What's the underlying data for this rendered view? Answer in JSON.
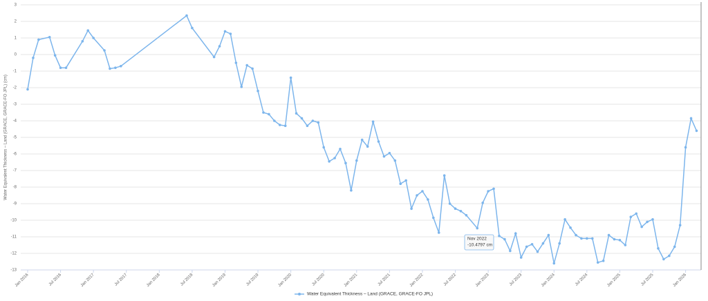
{
  "chart_data": {
    "type": "line",
    "y_label": "Water Equivalent Thickness – Land (GRACE, GRACE-FO JPL) (cm)",
    "x": [
      "2016-01",
      "2016-02",
      "2016-03",
      "2016-05",
      "2016-06",
      "2016-07",
      "2016-08",
      "2016-11",
      "2016-12",
      "2017-01",
      "2017-03",
      "2017-04",
      "2017-05",
      "2017-06",
      "2018-06",
      "2018-07",
      "2018-11",
      "2018-12",
      "2019-01",
      "2019-02",
      "2019-03",
      "2019-04",
      "2019-05",
      "2019-06",
      "2019-07",
      "2019-08",
      "2019-09",
      "2019-10",
      "2019-11",
      "2019-12",
      "2020-01",
      "2020-02",
      "2020-03",
      "2020-04",
      "2020-05",
      "2020-06",
      "2020-07",
      "2020-08",
      "2020-09",
      "2020-10",
      "2020-11",
      "2020-12",
      "2021-01",
      "2021-02",
      "2021-03",
      "2021-04",
      "2021-05",
      "2021-06",
      "2021-07",
      "2021-08",
      "2021-09",
      "2021-10",
      "2021-11",
      "2021-12",
      "2022-01",
      "2022-02",
      "2022-03",
      "2022-04",
      "2022-05",
      "2022-06",
      "2022-07",
      "2022-08",
      "2022-09",
      "2022-11",
      "2022-12",
      "2023-01",
      "2023-02",
      "2023-03",
      "2023-04",
      "2023-05",
      "2023-06",
      "2023-07",
      "2023-08",
      "2023-09",
      "2023-10",
      "2023-11",
      "2023-12",
      "2024-01",
      "2024-02",
      "2024-03",
      "2024-04",
      "2024-05",
      "2024-06",
      "2024-07",
      "2024-08",
      "2024-09",
      "2024-10",
      "2024-11",
      "2024-12",
      "2025-01",
      "2025-02",
      "2025-03",
      "2025-04",
      "2025-05",
      "2025-06",
      "2025-07",
      "2025-08",
      "2025-09",
      "2025-10",
      "2025-11",
      "2025-12",
      "2026-01",
      "2026-02",
      "2026-03"
    ],
    "series": [
      {
        "name": "Water Equivalent Thickness – Land (GRACE, GRACE-FO JPL)",
        "color": "#7cb5ec",
        "values": [
          -2.1,
          -0.2,
          0.9,
          1.05,
          -0.05,
          -0.8,
          -0.8,
          0.8,
          1.45,
          1.0,
          0.25,
          -0.85,
          -0.8,
          -0.7,
          2.35,
          1.6,
          -0.15,
          0.5,
          1.4,
          1.25,
          -0.5,
          -1.95,
          -0.65,
          -0.85,
          -2.2,
          -3.5,
          -3.6,
          -4.0,
          -4.25,
          -4.3,
          -1.4,
          -3.55,
          -3.85,
          -4.3,
          -4.0,
          -4.1,
          -5.6,
          -6.45,
          -6.25,
          -5.7,
          -6.55,
          -8.2,
          -6.4,
          -5.15,
          -5.55,
          -4.05,
          -5.25,
          -6.15,
          -5.95,
          -6.4,
          -7.8,
          -7.6,
          -9.3,
          -8.5,
          -8.25,
          -8.75,
          -9.85,
          -10.75,
          -7.3,
          -9.0,
          -9.3,
          -9.45,
          -9.7,
          -10.4797,
          -8.95,
          -8.25,
          -8.1,
          -10.95,
          -11.15,
          -11.85,
          -10.8,
          -12.25,
          -11.6,
          -11.45,
          -11.9,
          -11.4,
          -10.9,
          -12.6,
          -11.4,
          -9.95,
          -10.45,
          -10.9,
          -11.1,
          -11.1,
          -11.1,
          -12.55,
          -12.45,
          -10.9,
          -11.15,
          -11.2,
          -11.5,
          -9.8,
          -9.6,
          -10.4,
          -10.1,
          -9.95,
          -11.7,
          -12.35,
          -12.15,
          -11.6,
          -10.3,
          -5.6,
          -3.85,
          -4.6
        ]
      }
    ],
    "ylim": [
      -13,
      3
    ],
    "yticks": [
      3,
      2,
      1,
      0,
      -1,
      -2,
      -3,
      -4,
      -5,
      -6,
      -7,
      -8,
      -9,
      -10,
      -11,
      -12,
      -13
    ],
    "xticks": [
      {
        "value": "2016-01",
        "label": "Jan 2016"
      },
      {
        "value": "2016-07",
        "label": "Jul 2016"
      },
      {
        "value": "2017-01",
        "label": "Jan 2017"
      },
      {
        "value": "2017-07",
        "label": "Jul 2017"
      },
      {
        "value": "2018-01",
        "label": "Jan 2018"
      },
      {
        "value": "2018-07",
        "label": "Jul 2018"
      },
      {
        "value": "2019-01",
        "label": "Jan 2019"
      },
      {
        "value": "2019-07",
        "label": "Jul 2019"
      },
      {
        "value": "2020-01",
        "label": "Jan 2020"
      },
      {
        "value": "2020-07",
        "label": "Jul 2020"
      },
      {
        "value": "2021-01",
        "label": "Jan 2021"
      },
      {
        "value": "2021-07",
        "label": "Jul 2021"
      },
      {
        "value": "2022-01",
        "label": "Jan 2022"
      },
      {
        "value": "2022-07",
        "label": "Jul 2022"
      },
      {
        "value": "2023-01",
        "label": "Jan 2023"
      },
      {
        "value": "2023-07",
        "label": "Jul 2023"
      },
      {
        "value": "2024-01",
        "label": "Jan 2024"
      },
      {
        "value": "2024-07",
        "label": "Jul 2024"
      },
      {
        "value": "2025-01",
        "label": "Jan 2025"
      },
      {
        "value": "2025-07",
        "label": "Jul 2025"
      },
      {
        "value": "2026-01",
        "label": "Jan 2026"
      }
    ],
    "grid": true,
    "legend": "bottom",
    "tooltip": {
      "title": "Nov 2022",
      "text": "-10.4797 cm"
    }
  }
}
